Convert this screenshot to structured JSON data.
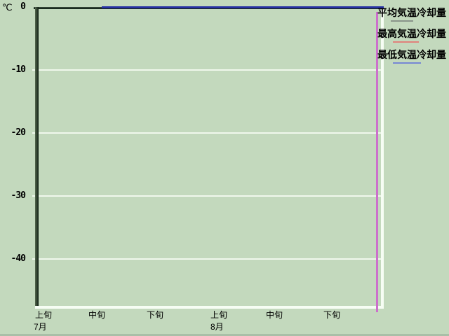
{
  "chart": {
    "y_axis": {
      "unit": "℃",
      "ticks": [
        "0",
        "-10",
        "-20",
        "-30",
        "-40"
      ]
    },
    "x_axis": {
      "ticks": [
        "上旬",
        "中旬",
        "下旬",
        "上旬",
        "中旬",
        "下旬"
      ],
      "months": [
        "7月",
        "8月"
      ]
    },
    "legend": [
      {
        "label": "平均気温冷却量",
        "color": "#8a948a"
      },
      {
        "label": "最高気温冷却量",
        "color": "#e0837c"
      },
      {
        "label": "最低気温冷却量",
        "color": "#7787d4"
      }
    ],
    "colors": {
      "background": "#c3d9bd",
      "frame_dark": "#0e1e12",
      "grid_white": "#eff7ec",
      "min_temp_line": "#2631a2",
      "marker_pink": "#cc70cc"
    }
  },
  "chart_data": {
    "type": "line",
    "title": "",
    "ylabel": "℃",
    "xlabel": "",
    "y_ticks": [
      0,
      -10,
      -20,
      -30,
      -40
    ],
    "ylim": [
      -47.5,
      1.5
    ],
    "x_categories": [
      "7月上旬",
      "7月中旬",
      "7月下旬",
      "8月上旬",
      "8月中旬",
      "8月下旬"
    ],
    "series": [
      {
        "name": "平均気温冷却量",
        "color": "#8a948a",
        "values": [
          null,
          0,
          0,
          0,
          0,
          0
        ]
      },
      {
        "name": "最高気温冷却量",
        "color": "#e0837c",
        "values": [
          null,
          0,
          0,
          0,
          0,
          0
        ]
      },
      {
        "name": "最低気温冷却量",
        "color": "#2631a2",
        "values": [
          null,
          0,
          0,
          0,
          0,
          0
        ]
      }
    ],
    "series_overlap_note": "visible flat line at 0°C from 7月中旬 to end of 8月 (blue 最低気温冷却量 drawn on top)",
    "grid": true,
    "legend_position": "top-right",
    "annotations": [
      {
        "type": "vertical-line",
        "color": "#cc70cc",
        "position": "near right edge, end of 8月下旬"
      }
    ]
  }
}
